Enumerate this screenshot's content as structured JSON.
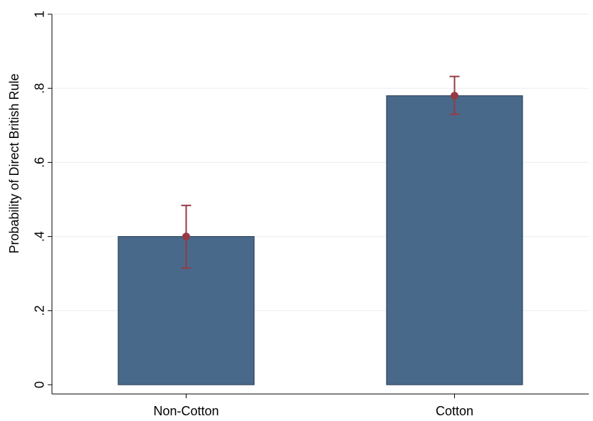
{
  "chart_data": {
    "type": "bar",
    "categories": [
      "Non-Cotton",
      "Cotton"
    ],
    "values": [
      0.4,
      0.78
    ],
    "error_bars": [
      {
        "low": 0.315,
        "high": 0.484
      },
      {
        "low": 0.73,
        "high": 0.832
      }
    ],
    "ylabel": "Probability of Direct British Rule",
    "xlabel": "",
    "ylim": [
      0,
      1
    ],
    "yticks": [
      {
        "value": 0,
        "label": "0"
      },
      {
        "value": 0.2,
        "label": ".2"
      },
      {
        "value": 0.4,
        "label": ".4"
      },
      {
        "value": 0.6,
        "label": ".6"
      },
      {
        "value": 0.8,
        "label": ".8"
      },
      {
        "value": 1,
        "label": "1"
      }
    ],
    "grid": true,
    "colors": {
      "bar": "#49698a",
      "bar_edge": "#1f3550",
      "point": "#953a45",
      "error": "#953a45",
      "grid": "#e8eef2"
    }
  }
}
